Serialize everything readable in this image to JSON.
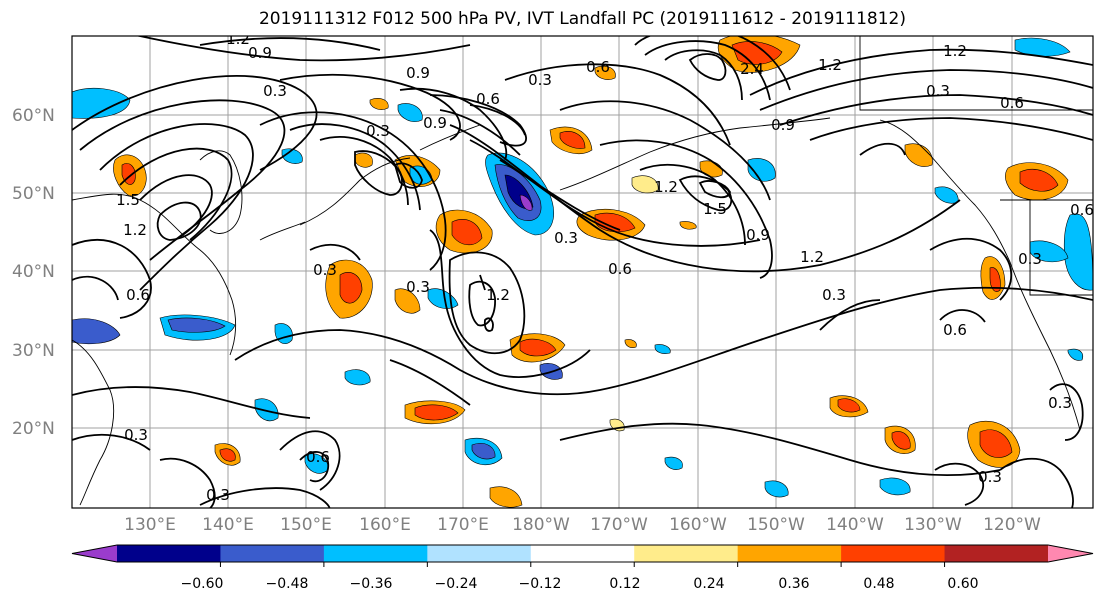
{
  "title": "2019111312 F012 500 hPa PV, IVT Landfall PC (2019111612 - 2019111812)",
  "lon_labels": [
    "130°E",
    "140°E",
    "150°E",
    "160°E",
    "170°E",
    "180°W",
    "170°W",
    "160°W",
    "150°W",
    "140°W",
    "130°W",
    "120°W"
  ],
  "lat_labels": [
    "60°N",
    "50°N",
    "40°N",
    "30°N",
    "20°N"
  ],
  "colorbar": {
    "colors": [
      "#9a3ccc",
      "#00008b",
      "#3a5ccc",
      "#00bfff",
      "#b0e2ff",
      "#ffffff",
      "#ffec8b",
      "#ffa500",
      "#ff4000",
      "#b22222",
      "#ff88b0"
    ],
    "tick_labels": [
      "−0.60",
      "−0.48",
      "−0.36",
      "−0.24",
      "−0.12",
      "0.12",
      "0.24",
      "0.36",
      "0.48",
      "0.60"
    ]
  },
  "contour_labels": [
    "1.2",
    "0.9",
    "0.3",
    "0.9",
    "0.3",
    "0.6",
    "0.9",
    "1.2",
    "0.3",
    "0.6",
    "2.4",
    "1.2",
    "0.9",
    "1.5",
    "1.2",
    "0.3",
    "0.6",
    "0.3",
    "0.6",
    "1.2",
    "0.3",
    "0.6",
    "0.3",
    "0.3",
    "0.6",
    "0.3",
    "1.5",
    "0.9",
    "1.2",
    "0.3",
    "0.3",
    "0.6",
    "0.3",
    "1.2",
    "0.6",
    "0.3"
  ]
}
